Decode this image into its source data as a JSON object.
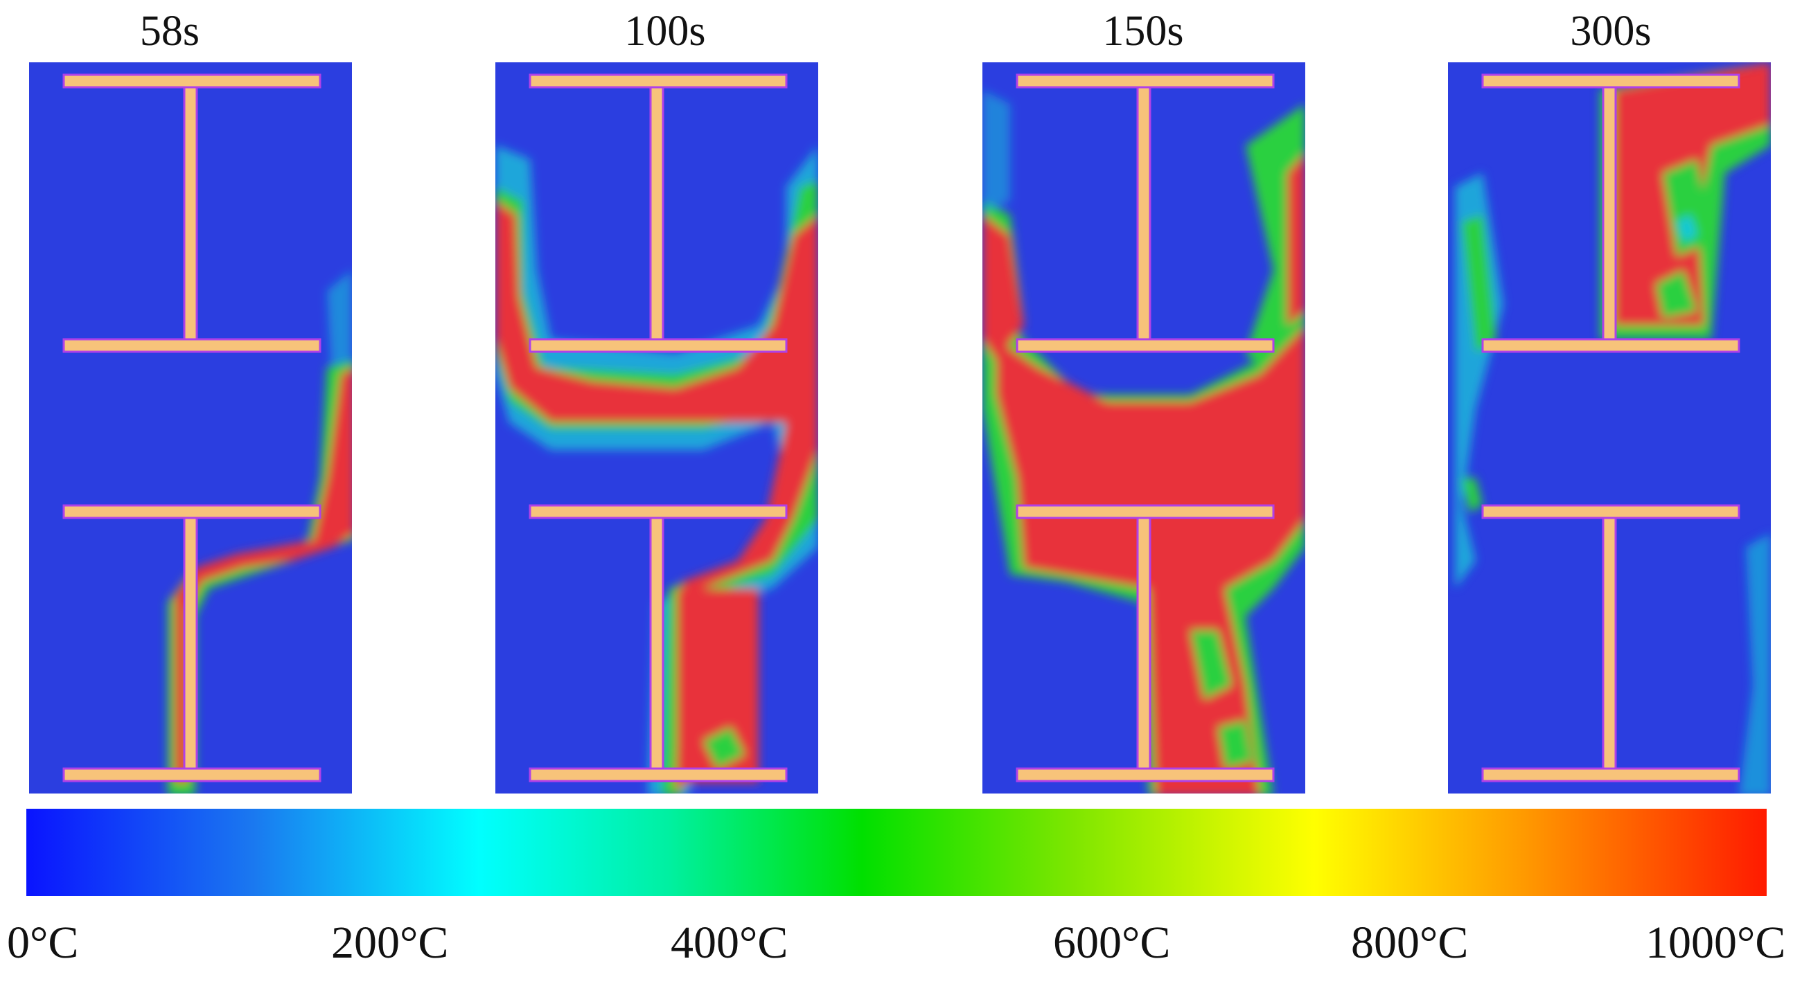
{
  "frames": [
    {
      "time": "58s"
    },
    {
      "time": "100s"
    },
    {
      "time": "150s"
    },
    {
      "time": "300s"
    }
  ],
  "colorbar": {
    "labels": [
      "0°C",
      "200°C",
      "400°C",
      "600°C",
      "800°C",
      "1000°C"
    ],
    "min_value": 0,
    "max_value": 1000,
    "unit": "°C"
  },
  "colors": {
    "background_cold": "#2b3ee0",
    "beam": "#f7c37a",
    "beam_outline": "#b040e8",
    "hot": "#e8303a",
    "warm": "#2ad040",
    "cool": "#18c8d8"
  }
}
